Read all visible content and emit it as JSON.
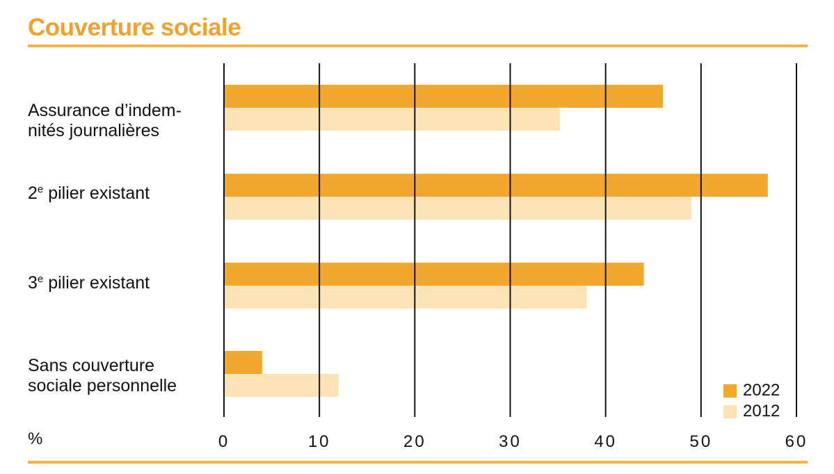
{
  "chart_data": {
    "type": "bar",
    "orientation": "horizontal",
    "title": "Couverture sociale",
    "xlabel": "%",
    "xlim": [
      0,
      60
    ],
    "xticks": [
      "0",
      "10",
      "20",
      "30",
      "40",
      "50",
      "60"
    ],
    "grid": true,
    "legend_position": "bottom-right",
    "categories": [
      {
        "main": "Assurance d’indem-",
        "line2": "nités journalières"
      },
      {
        "main": "2",
        "sup": "e",
        "rest": " pilier existant"
      },
      {
        "main": "3",
        "sup": "e",
        "rest": " pilier existant"
      },
      {
        "main": "Sans couverture",
        "line2": "sociale personnelle"
      }
    ],
    "series": [
      {
        "name": "2022",
        "color": "#f2a72e",
        "values": [
          46,
          57,
          44,
          4
        ]
      },
      {
        "name": "2012",
        "color": "#fce3b5",
        "values": [
          35.2,
          49,
          38,
          12
        ]
      }
    ]
  }
}
